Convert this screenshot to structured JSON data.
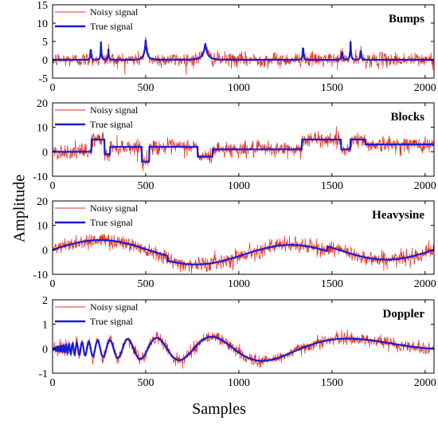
{
  "figure": {
    "ylabel": "Amplitude",
    "xlabel": "Samples"
  },
  "chart_data": [
    {
      "type": "line",
      "title": "Bumps",
      "xlim": [
        0,
        2048
      ],
      "ylim": [
        -5,
        15
      ],
      "x_ticks": [
        0,
        500,
        1000,
        1500,
        2000
      ],
      "y_ticks": [
        -5,
        0,
        5,
        10,
        15
      ],
      "legend": {
        "position": "top-left",
        "entries": [
          "Noisy signal",
          "True signal"
        ]
      },
      "series": [
        {
          "name": "Noisy signal",
          "color": "#e03020",
          "noise_std": 1.0
        },
        {
          "name": "True signal",
          "color": "#1a1ad6",
          "shape": "bumps",
          "bumps": [
            {
              "center": 205,
              "height": 4.0,
              "width": 9
            },
            {
              "center": 260,
              "height": 5.0,
              "width": 9
            },
            {
              "center": 300,
              "height": 3.0,
              "width": 9
            },
            {
              "center": 500,
              "height": 5.5,
              "width": 28
            },
            {
              "center": 820,
              "height": 4.5,
              "width": 45
            },
            {
              "center": 1345,
              "height": 4.5,
              "width": 10
            },
            {
              "center": 1555,
              "height": 3.0,
              "width": 10
            },
            {
              "center": 1600,
              "height": 5.0,
              "width": 11
            },
            {
              "center": 1655,
              "height": 3.5,
              "width": 9
            }
          ]
        }
      ]
    },
    {
      "type": "line",
      "title": "Blocks",
      "xlim": [
        0,
        2048
      ],
      "ylim": [
        -10,
        20
      ],
      "x_ticks": [
        0,
        500,
        1000,
        1500,
        2000
      ],
      "y_ticks": [
        -10,
        0,
        10,
        20
      ],
      "legend": {
        "position": "top-left",
        "entries": [
          "Noisy signal",
          "True signal"
        ]
      },
      "series": [
        {
          "name": "Noisy signal",
          "color": "#e03020",
          "noise_std": 1.6
        },
        {
          "name": "True signal",
          "color": "#1a1ad6",
          "shape": "steps",
          "steps": [
            [
              0,
              0
            ],
            [
              210,
              5
            ],
            [
              280,
              -1
            ],
            [
              310,
              2
            ],
            [
              480,
              -4
            ],
            [
              520,
              2
            ],
            [
              780,
              -2
            ],
            [
              860,
              1
            ],
            [
              1340,
              5
            ],
            [
              1550,
              1
            ],
            [
              1600,
              5
            ],
            [
              1680,
              3
            ],
            [
              2048,
              3
            ]
          ]
        }
      ]
    },
    {
      "type": "line",
      "title": "Heavysine",
      "xlim": [
        0,
        2048
      ],
      "ylim": [
        -10,
        20
      ],
      "x_ticks": [
        0,
        500,
        1000,
        1500,
        2000
      ],
      "y_ticks": [
        -10,
        0,
        10,
        20
      ],
      "legend": {
        "position": "top-left",
        "entries": [
          "Noisy signal",
          "True signal"
        ]
      },
      "series": [
        {
          "name": "Noisy signal",
          "color": "#e03020",
          "noise_std": 1.6
        },
        {
          "name": "True signal",
          "color": "#1a1ad6",
          "shape": "heavysine"
        }
      ]
    },
    {
      "type": "line",
      "title": "Doppler",
      "xlim": [
        0,
        2048
      ],
      "ylim": [
        -1,
        2
      ],
      "x_ticks": [
        0,
        500,
        1000,
        1500,
        2000
      ],
      "y_ticks": [
        -1,
        0,
        1,
        2
      ],
      "legend": {
        "position": "top-left",
        "entries": [
          "Noisy signal",
          "True signal"
        ]
      },
      "series": [
        {
          "name": "Noisy signal",
          "color": "#e03020",
          "noise_std": 0.13
        },
        {
          "name": "True signal",
          "color": "#1a1ad6",
          "shape": "doppler",
          "amplitude": 0.5
        }
      ]
    }
  ]
}
